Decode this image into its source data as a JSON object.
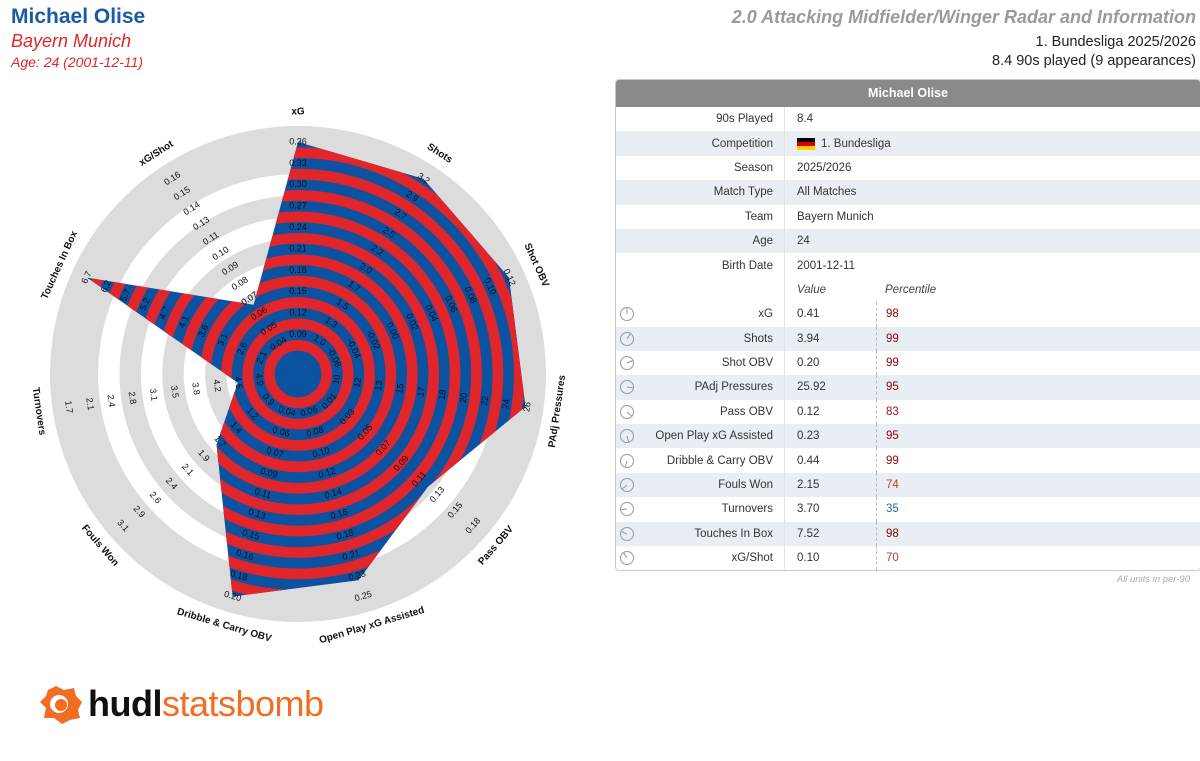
{
  "header": {
    "player_name": "Michael Olise",
    "team": "Bayern Munich",
    "age_line": "Age: 24 (2001-12-11)",
    "report_title": "2.0 Attacking Midfielder/Winger Radar and Information",
    "competition_line": "1. Bundesliga 2025/2026",
    "minutes_line": "8.4 90s played (9 appearances)"
  },
  "chart_data": {
    "type": "radar",
    "title": "Michael Olise",
    "colors": {
      "fill": "#0b52a1",
      "stripe": "#e0252b",
      "ring": "#dcdcdc"
    },
    "axes": [
      {
        "name": "xG",
        "ticks": [
          "0.09",
          "0.12",
          "0.15",
          "0.18",
          "0.21",
          "0.24",
          "0.27",
          "0.30",
          "0.33",
          "0.36"
        ],
        "value": 0.41,
        "percentile": 98
      },
      {
        "name": "Shots",
        "ticks": [
          "1.0",
          "1.3",
          "1.5",
          "1.7",
          "2.0",
          "2.2",
          "2.5",
          "2.7",
          "2.9",
          "3.2"
        ],
        "value": 3.94,
        "percentile": 99
      },
      {
        "name": "Shot OBV",
        "ticks": [
          "-0.06",
          "-0.04",
          "-0.02",
          "0.00",
          "0.02",
          "0.04",
          "0.06",
          "0.08",
          "0.10",
          "0.12"
        ],
        "value": 0.2,
        "percentile": 99
      },
      {
        "name": "PAdj Pressures",
        "ticks": [
          "10",
          "12",
          "13",
          "15",
          "17",
          "18",
          "20",
          "22",
          "24",
          "26"
        ],
        "value": 25.92,
        "percentile": 95
      },
      {
        "name": "Pass OBV",
        "ticks": [
          "0.01",
          "0.03",
          "0.05",
          "0.07",
          "0.09",
          "0.11",
          "0.13",
          "0.15",
          "0.18"
        ],
        "value": 0.12,
        "percentile": 83
      },
      {
        "name": "Open Play xG Assisted",
        "ticks": [
          "0.06",
          "0.08",
          "0.10",
          "0.12",
          "0.14",
          "0.16",
          "0.18",
          "0.21",
          "0.23",
          "0.25"
        ],
        "value": 0.23,
        "percentile": 95
      },
      {
        "name": "Dribble & Carry OBV",
        "ticks": [
          "0.04",
          "0.06",
          "0.07",
          "0.09",
          "0.11",
          "0.13",
          "0.15",
          "0.16",
          "0.18",
          "0.20"
        ],
        "value": 0.44,
        "percentile": 99
      },
      {
        "name": "Fouls Won",
        "ticks": [
          "0.9",
          "1.2",
          "1.4",
          "1.7",
          "1.9",
          "2.1",
          "2.4",
          "2.6",
          "2.9",
          "3.1"
        ],
        "value": 2.15,
        "percentile": 74
      },
      {
        "name": "Turnovers",
        "ticks": [
          "4.9",
          "4.5",
          "4.2",
          "3.8",
          "3.5",
          "3.1",
          "2.8",
          "2.4",
          "2.1",
          "1.7"
        ],
        "value": 3.7,
        "percentile": 35
      },
      {
        "name": "Touches In Box",
        "ticks": [
          "2.1",
          "2.6",
          "3.1",
          "3.6",
          "4.1",
          "4.7",
          "5.2",
          "5.7",
          "6.2",
          "6.7"
        ],
        "value": 7.52,
        "percentile": 98
      },
      {
        "name": "xG/Shot",
        "ticks": [
          "0.04",
          "0.05",
          "0.06",
          "0.07",
          "0.08",
          "0.09",
          "0.10",
          "0.11",
          "0.13",
          "0.14",
          "0.15",
          "0.16"
        ],
        "value": 0.1,
        "percentile": 70
      }
    ],
    "inner_ticks": [
      {
        "angle": 171,
        "labels": [
          "1.0",
          "1.3",
          "1.5"
        ]
      }
    ],
    "shape_levels": [
      1.0,
      1.0,
      1.0,
      0.99,
      0.72,
      0.92,
      1.0,
      0.42,
      0.2,
      1.0,
      0.3
    ]
  },
  "table": {
    "title": "Michael Olise",
    "info_rows": [
      {
        "label": "90s Played",
        "value": "8.4"
      },
      {
        "label": "Competition",
        "value": "1. Bundesliga",
        "flag": true
      },
      {
        "label": "Season",
        "value": "2025/2026"
      },
      {
        "label": "Match Type",
        "value": "All Matches"
      },
      {
        "label": "Team",
        "value": "Bayern Munich"
      },
      {
        "label": "Age",
        "value": "24"
      },
      {
        "label": "Birth Date",
        "value": "2001-12-11"
      }
    ],
    "col_value": "Value",
    "col_percentile": "Percentile",
    "metrics": [
      {
        "label": "xG",
        "value": "0.41",
        "pct": "98",
        "color": "#8b0000"
      },
      {
        "label": "Shots",
        "value": "3.94",
        "pct": "99",
        "color": "#8b0000"
      },
      {
        "label": "Shot OBV",
        "value": "0.20",
        "pct": "99",
        "color": "#8b0000"
      },
      {
        "label": "PAdj Pressures",
        "value": "25.92",
        "pct": "95",
        "color": "#8b0000"
      },
      {
        "label": "Pass OBV",
        "value": "0.12",
        "pct": "83",
        "color": "#a01010"
      },
      {
        "label": "Open Play xG Assisted",
        "value": "0.23",
        "pct": "95",
        "color": "#8b0000"
      },
      {
        "label": "Dribble & Carry OBV",
        "value": "0.44",
        "pct": "99",
        "color": "#8b0000"
      },
      {
        "label": "Fouls Won",
        "value": "2.15",
        "pct": "74",
        "color": "#c0392b"
      },
      {
        "label": "Turnovers",
        "value": "3.70",
        "pct": "35",
        "color": "#2c6aa0"
      },
      {
        "label": "Touches In Box",
        "value": "7.52",
        "pct": "98",
        "color": "#8b0000"
      },
      {
        "label": "xG/Shot",
        "value": "0.10",
        "pct": "70",
        "color": "#c0392b"
      }
    ],
    "footnote": "All units in per-90"
  },
  "logo": {
    "part1": "hudl",
    "part2": "statsbomb"
  }
}
